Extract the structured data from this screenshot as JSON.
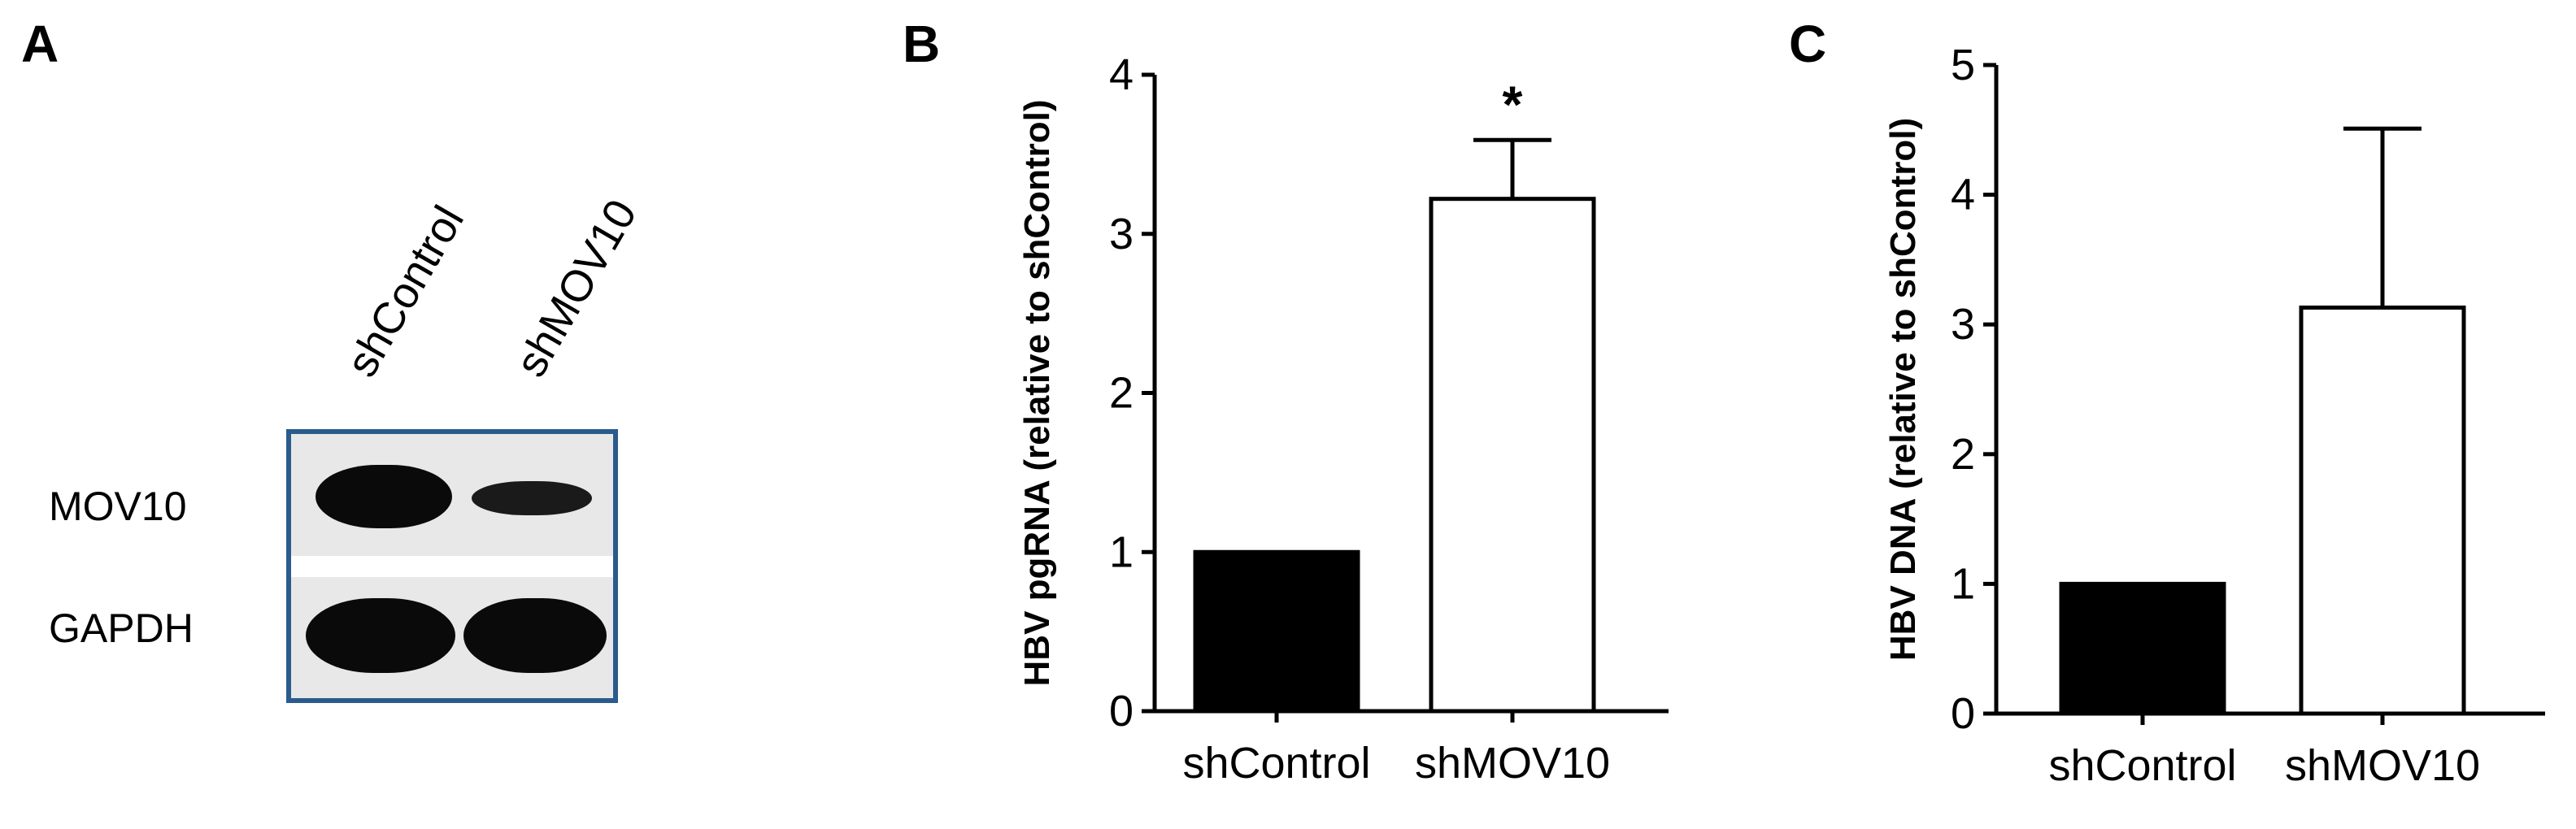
{
  "panels": {
    "a": {
      "letter": "A"
    },
    "b": {
      "letter": "B"
    },
    "c": {
      "letter": "C"
    }
  },
  "blot": {
    "lane_labels": [
      "shControl",
      "shMOV10"
    ],
    "row_labels": [
      "MOV10",
      "GAPDH"
    ],
    "frame_color": "#2a5b8c"
  },
  "chart_data": [
    {
      "type": "bar",
      "title": "",
      "xlabel": "",
      "ylabel": "HBV pgRNA (relative to shControl)",
      "categories": [
        "shControl",
        "shMOV10"
      ],
      "values": [
        1.0,
        3.22
      ],
      "error": [
        0,
        0.37
      ],
      "fills": [
        "#000000",
        "#ffffff"
      ],
      "ylim": [
        0,
        4
      ],
      "yticks": [
        "0",
        "1",
        "2",
        "3",
        "4"
      ],
      "annotations": [
        "",
        "*"
      ]
    },
    {
      "type": "bar",
      "title": "",
      "xlabel": "",
      "ylabel": "HBV DNA (relative to shControl)",
      "categories": [
        "shControl",
        "shMOV10"
      ],
      "values": [
        1.0,
        3.13
      ],
      "error": [
        0,
        1.38
      ],
      "fills": [
        "#000000",
        "#ffffff"
      ],
      "ylim": [
        0,
        5
      ],
      "yticks": [
        "0",
        "1",
        "2",
        "3",
        "4",
        "5"
      ],
      "annotations": [
        "",
        ""
      ]
    }
  ]
}
